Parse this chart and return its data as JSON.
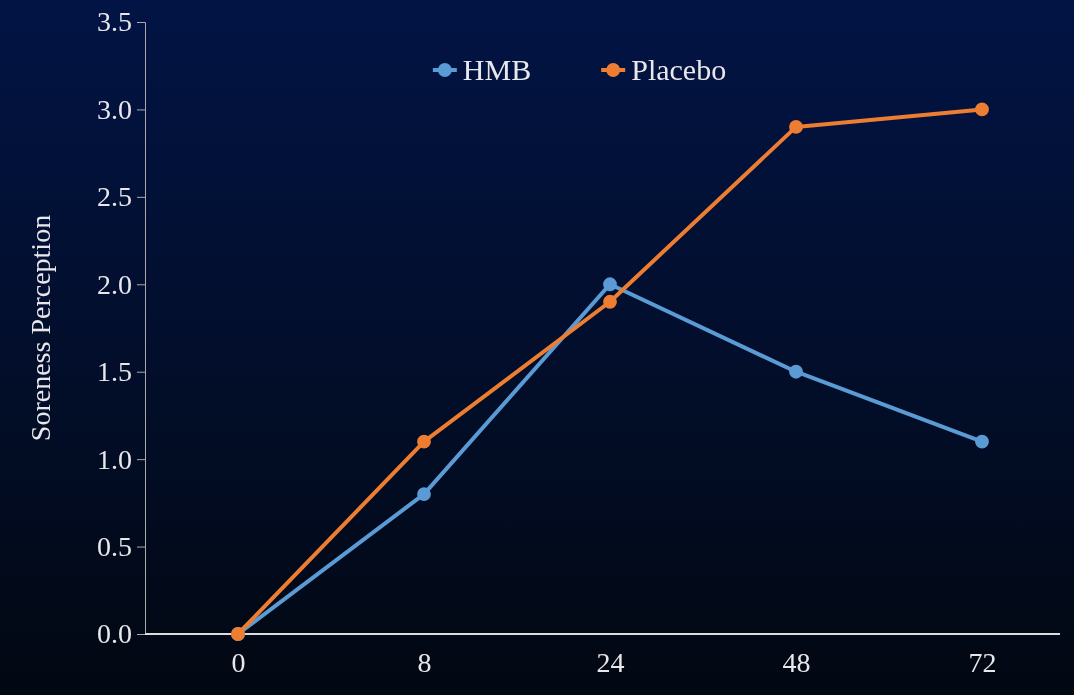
{
  "chart_data": {
    "type": "line",
    "ylabel": "Soreness Perception",
    "categories": [
      "0",
      "8",
      "24",
      "48",
      "72"
    ],
    "series": [
      {
        "name": "HMB",
        "color": "#5b9bd5",
        "values": [
          0,
          0.8,
          2.0,
          1.5,
          1.1
        ]
      },
      {
        "name": "Placebo",
        "color": "#ed7d31",
        "values": [
          0,
          1.1,
          1.9,
          2.9,
          3.0
        ]
      }
    ],
    "ylim": [
      0,
      3.5
    ],
    "yticks": [
      {
        "value": 0,
        "label": "0.0"
      },
      0.5,
      {
        "value": 1,
        "label": "1.0"
      },
      1.5,
      {
        "value": 2,
        "label": "2.0"
      },
      2.5,
      {
        "value": 3,
        "label": "3.0"
      },
      3.5
    ],
    "grid": false,
    "legend": "top",
    "marker": "circle",
    "line_style": "solid"
  }
}
